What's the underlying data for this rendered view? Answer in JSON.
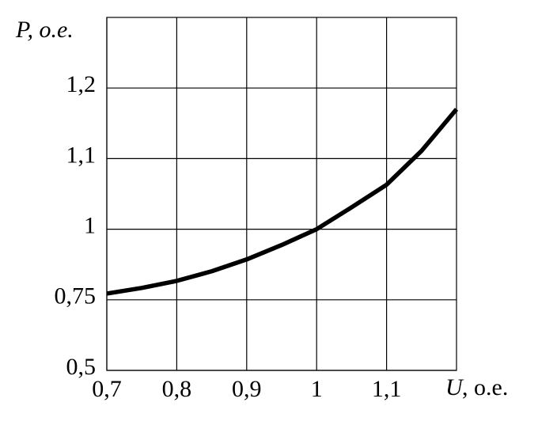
{
  "chart_data": {
    "type": "line",
    "y_label": "P, o.e.",
    "x_label_symbol": "U",
    "x_label_unit": ", o.e.",
    "x": [
      0.7,
      0.75,
      0.8,
      0.85,
      0.9,
      0.95,
      1.0,
      1.05,
      1.1,
      1.15,
      1.2
    ],
    "series": [
      {
        "color": "#000000",
        "values": [
          0.772,
          0.792,
          0.817,
          0.851,
          0.893,
          0.944,
          1.0,
          1.031,
          1.063,
          1.111,
          1.17
        ]
      }
    ],
    "xlim": [
      0.7,
      1.2
    ],
    "xticks": [
      {
        "value": 0.7,
        "label": "0,7"
      },
      {
        "value": 0.8,
        "label": "0,8"
      },
      {
        "value": 0.9,
        "label": "0,9"
      },
      1,
      {
        "value": 1.1,
        "label": "1,1"
      }
    ],
    "ylim": [
      0.5,
      1.3
    ],
    "yticks": [
      {
        "value": 0.5,
        "label": "0,5"
      },
      {
        "value": 0.75,
        "label": "0,75"
      },
      1,
      {
        "value": 1.1,
        "label": "1,1"
      },
      {
        "value": 1.2,
        "label": "1,2"
      }
    ],
    "grid": true
  }
}
